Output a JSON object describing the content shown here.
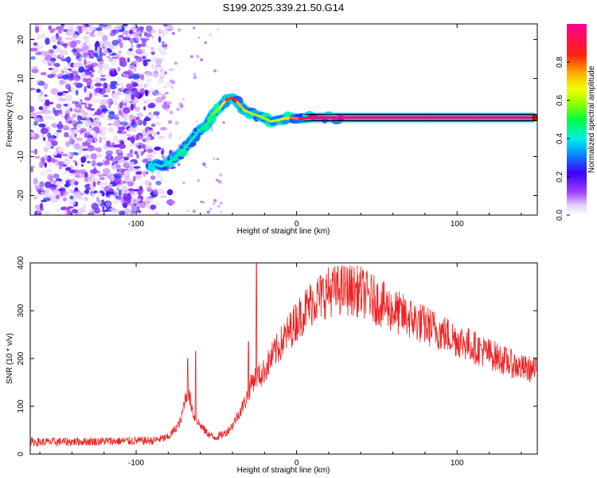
{
  "title": "S199.2025.339.21.50.G14",
  "chart_data": [
    {
      "type": "heatmap",
      "xlabel": "Height of straight line (km)",
      "ylabel": "Frequency (Hz)",
      "xlim": [
        -166,
        150
      ],
      "ylim": [
        -25,
        24
      ],
      "xticks": [
        -100,
        0,
        100
      ],
      "xtick_labels": [
        "-100",
        "0",
        "100"
      ],
      "yticks": [
        -20,
        -10,
        0,
        10,
        20
      ],
      "ytick_labels": [
        "-20",
        "-10",
        "0",
        "10",
        "20"
      ],
      "ridge": {
        "x": [
          -91,
          -88,
          -84,
          -80,
          -76,
          -72,
          -68,
          -64,
          -60,
          -56,
          -52,
          -48,
          -44,
          -40,
          -37,
          -33,
          -28,
          -22,
          -16,
          -10,
          -4,
          2,
          10,
          20,
          30,
          50,
          80,
          110,
          140,
          147
        ],
        "y": [
          -12.5,
          -12,
          -12.5,
          -11.5,
          -10.5,
          -9,
          -7,
          -5,
          -3,
          -2,
          1,
          2.5,
          4.5,
          5,
          4,
          2,
          1,
          0.2,
          -1,
          -0.5,
          0,
          -0.3,
          0,
          0,
          0,
          0,
          0,
          0,
          0,
          0
        ],
        "amp": [
          0.35,
          0.4,
          0.4,
          0.42,
          0.45,
          0.45,
          0.42,
          0.42,
          0.45,
          0.5,
          0.55,
          0.6,
          0.75,
          0.9,
          0.8,
          0.65,
          0.6,
          0.6,
          0.6,
          0.65,
          0.7,
          0.85,
          0.95,
          0.98,
          0.98,
          0.98,
          0.98,
          0.98,
          0.98,
          0.98
        ]
      },
      "noise_region_x": [
        -166,
        -85
      ],
      "colorbar": {
        "label": "Normalized spectral amplitude",
        "ticks": [
          "0.0",
          "0.2",
          "0.4",
          "0.6",
          "0.8"
        ],
        "tick_values": [
          0.0,
          0.2,
          0.4,
          0.6,
          0.8
        ],
        "range": [
          0,
          1
        ]
      }
    },
    {
      "type": "line",
      "xlabel": "Height of straight line (km)",
      "ylabel": "SNR (10 * v/v)",
      "xlim": [
        -166,
        150
      ],
      "ylim": [
        0,
        400
      ],
      "xticks": [
        -100,
        0,
        100
      ],
      "xtick_labels": [
        "-100",
        "0",
        "100"
      ],
      "yticks": [
        0,
        100,
        200,
        300,
        400
      ],
      "ytick_labels": [
        "0",
        "100",
        "200",
        "300",
        "400"
      ],
      "series": [
        {
          "name": "SNR",
          "color": "#ee2222",
          "envelope_x": [
            -166,
            -90,
            -80,
            -75,
            -72,
            -70,
            -68,
            -66,
            -64,
            -60,
            -56,
            -52,
            -48,
            -44,
            -40,
            -36,
            -32,
            -28,
            -26,
            -24,
            -22,
            -20,
            -16,
            -10,
            -4,
            0,
            10,
            20,
            30,
            40,
            50,
            60,
            70,
            80,
            90,
            100,
            110,
            120,
            130,
            140,
            150
          ],
          "envelope_y": [
            25,
            28,
            35,
            55,
            70,
            110,
            130,
            110,
            80,
            60,
            45,
            35,
            38,
            45,
            60,
            85,
            110,
            150,
            160,
            165,
            165,
            175,
            200,
            230,
            260,
            280,
            320,
            340,
            345,
            340,
            320,
            300,
            285,
            270,
            255,
            240,
            225,
            210,
            195,
            180,
            175
          ],
          "spikes": [
            {
              "x": -25,
              "y": 400
            },
            {
              "x": -30,
              "y": 235
            },
            {
              "x": -63,
              "y": 215
            },
            {
              "x": -68,
              "y": 200
            }
          ]
        }
      ]
    }
  ]
}
